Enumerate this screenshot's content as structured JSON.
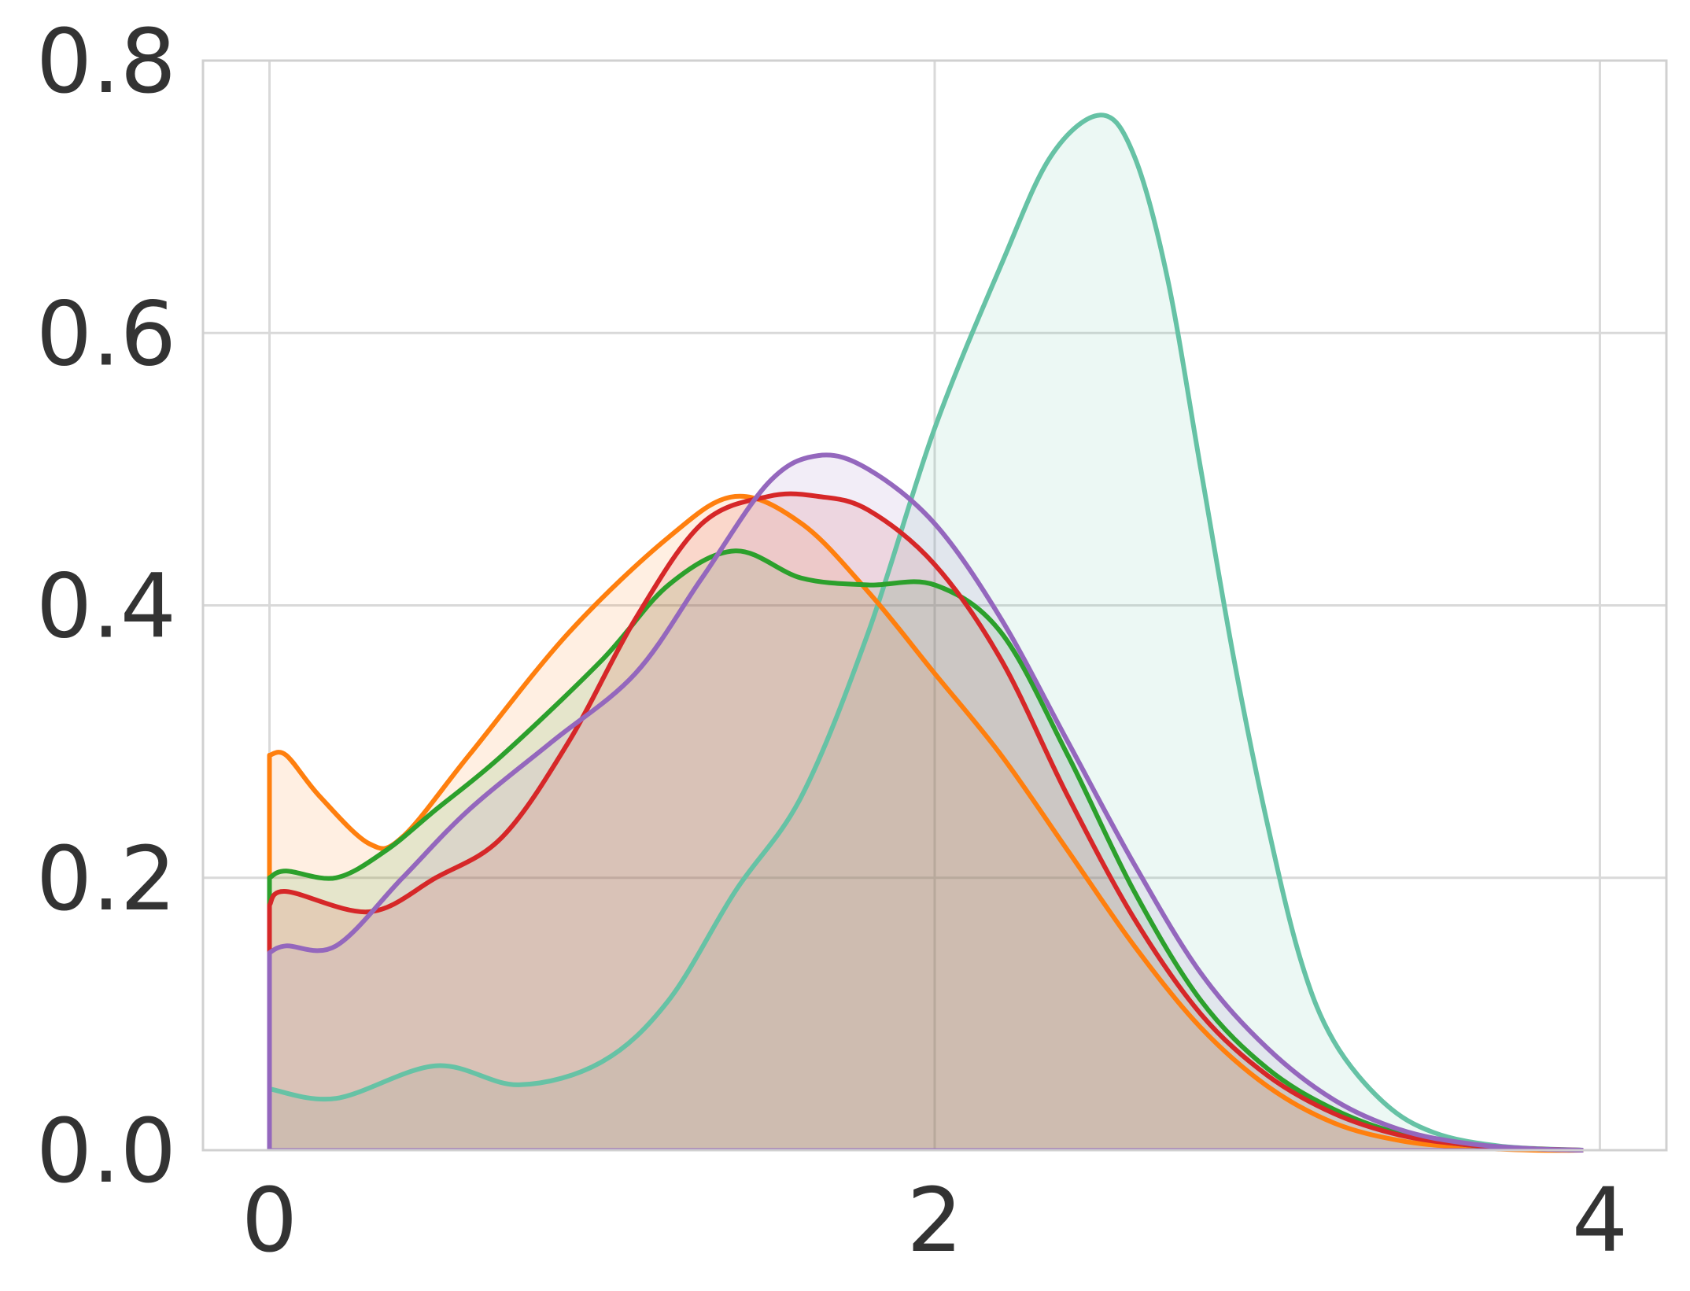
{
  "chart_data": {
    "type": "area",
    "title": "",
    "xlabel": "",
    "ylabel": "",
    "xlim": [
      -0.2,
      4.2
    ],
    "ylim": [
      0,
      0.8
    ],
    "xticks": [
      0,
      2,
      4
    ],
    "xtick_labels": [
      "0",
      "2",
      "4"
    ],
    "yticks": [
      0,
      0.2,
      0.4,
      0.6,
      0.8
    ],
    "ytick_labels": [
      "0.0",
      "0.2",
      "0.4",
      "0.6",
      "0.8"
    ],
    "grid": true,
    "legend": "none",
    "fill_opacity": 0.12,
    "series": [
      {
        "color": "#66c2a5",
        "x": [
          0,
          0.2,
          0.5,
          0.75,
          1.0,
          1.2,
          1.4,
          1.6,
          1.8,
          2.0,
          2.2,
          2.35,
          2.5,
          2.6,
          2.7,
          2.8,
          2.9,
          3.0,
          3.1,
          3.2,
          3.35,
          3.5,
          3.7,
          3.95
        ],
        "y": [
          0.045,
          0.038,
          0.062,
          0.048,
          0.065,
          0.11,
          0.19,
          0.26,
          0.38,
          0.53,
          0.65,
          0.73,
          0.76,
          0.73,
          0.64,
          0.5,
          0.36,
          0.24,
          0.14,
          0.08,
          0.035,
          0.013,
          0.003,
          0.0
        ]
      },
      {
        "color": "#ff7f0e",
        "x": [
          0,
          0.05,
          0.15,
          0.3,
          0.4,
          0.6,
          0.9,
          1.2,
          1.4,
          1.6,
          1.8,
          2.0,
          2.2,
          2.4,
          2.6,
          2.8,
          3.0,
          3.2,
          3.4,
          3.6,
          3.8,
          3.95
        ],
        "y": [
          0.29,
          0.29,
          0.26,
          0.225,
          0.23,
          0.29,
          0.38,
          0.45,
          0.48,
          0.46,
          0.41,
          0.35,
          0.29,
          0.22,
          0.15,
          0.09,
          0.047,
          0.02,
          0.007,
          0.002,
          0.0,
          0.0
        ]
      },
      {
        "color": "#2ca02c",
        "x": [
          0,
          0.05,
          0.2,
          0.35,
          0.5,
          0.7,
          1.0,
          1.2,
          1.4,
          1.6,
          1.8,
          2.0,
          2.2,
          2.4,
          2.6,
          2.8,
          3.0,
          3.2,
          3.4,
          3.6,
          3.8,
          3.95
        ],
        "y": [
          0.2,
          0.205,
          0.2,
          0.22,
          0.25,
          0.29,
          0.36,
          0.415,
          0.44,
          0.42,
          0.415,
          0.415,
          0.38,
          0.29,
          0.19,
          0.11,
          0.06,
          0.03,
          0.012,
          0.004,
          0.001,
          0.0
        ]
      },
      {
        "color": "#d62728",
        "x": [
          0,
          0.05,
          0.3,
          0.5,
          0.7,
          0.9,
          1.1,
          1.3,
          1.5,
          1.65,
          1.8,
          2.0,
          2.2,
          2.4,
          2.6,
          2.8,
          3.0,
          3.2,
          3.4,
          3.6,
          3.8,
          3.95
        ],
        "y": [
          0.18,
          0.19,
          0.175,
          0.2,
          0.23,
          0.3,
          0.39,
          0.46,
          0.48,
          0.48,
          0.47,
          0.43,
          0.36,
          0.26,
          0.17,
          0.1,
          0.055,
          0.027,
          0.011,
          0.004,
          0.001,
          0.0
        ]
      },
      {
        "color": "#9467bd",
        "x": [
          0,
          0.05,
          0.2,
          0.4,
          0.6,
          0.85,
          1.1,
          1.3,
          1.5,
          1.65,
          1.8,
          2.0,
          2.2,
          2.4,
          2.6,
          2.8,
          3.0,
          3.2,
          3.4,
          3.6,
          3.8,
          3.95
        ],
        "y": [
          0.145,
          0.15,
          0.15,
          0.2,
          0.25,
          0.3,
          0.35,
          0.42,
          0.49,
          0.51,
          0.5,
          0.46,
          0.39,
          0.3,
          0.21,
          0.13,
          0.075,
          0.037,
          0.015,
          0.005,
          0.001,
          0.0
        ]
      }
    ]
  }
}
